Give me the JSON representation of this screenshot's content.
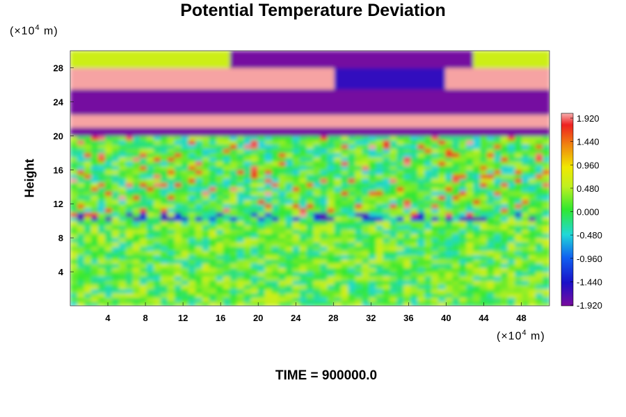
{
  "chart_data": {
    "type": "heatmap",
    "title": "Potential Temperature Deviation",
    "ylabel": "Height",
    "xlabel": "",
    "y_unit": {
      "prefix": "(×10",
      "exp": "4",
      "suffix": " m)"
    },
    "x_unit": {
      "prefix": "(×10",
      "exp": "4",
      "suffix": " m)"
    },
    "x_ticks": [
      "4",
      "8",
      "12",
      "16",
      "20",
      "24",
      "28",
      "32",
      "36",
      "40",
      "44",
      "48"
    ],
    "y_ticks": [
      "4",
      "8",
      "12",
      "16",
      "20",
      "24",
      "28"
    ],
    "xlim": [
      0,
      51
    ],
    "ylim": [
      0,
      30
    ],
    "colorbar": {
      "labels": [
        "1.920",
        "1.440",
        "0.960",
        "0.480",
        "0.000",
        "-0.480",
        "-0.960",
        "-1.440",
        "-1.920"
      ],
      "range": [
        -1.92,
        1.92
      ]
    },
    "colors": {
      "max": "#f7b0b0",
      "red": "#ee2020",
      "yellow": "#e8e800",
      "green": "#30e830",
      "cyan": "#20d8d8",
      "blue": "#1030e0",
      "min": "#7a0c9e"
    },
    "field_description_rows": [
      {
        "y": 29,
        "value": -1.9
      },
      {
        "y": 27,
        "value": 1.9
      },
      {
        "y": 24,
        "value": -1.9
      },
      {
        "y": 21.5,
        "value": 1.9
      },
      {
        "y": 16,
        "value": 0.3
      },
      {
        "y": 10,
        "value": -0.9
      },
      {
        "y": 5,
        "value": 0.1
      }
    ]
  },
  "footer": {
    "time": "TIME = 900000.0"
  }
}
